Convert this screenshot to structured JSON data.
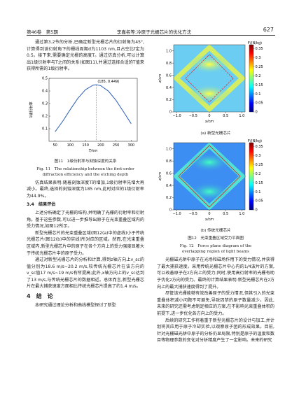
{
  "header": {
    "volume": "第46卷　第5期",
    "running_title": "李嘉名等:冷原子光栅芯片的优化方法",
    "page": "627"
  },
  "left": {
    "p1": "通过第3.2节的分析,已确定新型光栅芯片的衍射角为45°,计算得到该衍射角下的栅线周期d为1103 nm,且占空比f定为0.5。接下来,需要确定光栅的高度T。通过仿真分析,可以计算出1级衍射率与T之间的关系(如图11),并通过选择合适的T值来获得所需的1级衍射率。",
    "fig11_caption_cn": "图11　1级衍射率与刻蚀深度的关系",
    "fig11_caption_en": "Fig. 11　The relationship between the first-order diffraction efficiency and the etching depth",
    "p2": "仿真结果表明:随着刻蚀深度T的增加,1级衍射率先增大再减小。最终,选择的刻蚀深度为185 nm,此时对应的1级衍射率为44.9%。",
    "section34": "3.4　结果评估",
    "p3": "上述分析确定了光栅的结构,并明确了光栅的衍射率和衍射角。基于这些参数,可以进一步推导出原子在光束重叠区域内的受力情况,如图12所示。",
    "p4": "新型光栅芯片的光束重叠区域(图12(a)中的虚线)小于传统光栅芯片(图12(b)中的实线)所对应的区域。然而,在光束重叠区域内,新型光栅芯片中的原子在各个方向上的受力强度显著大于传统光栅芯片中的原子受力。",
    "p5": "通过对新型光栅芯片的分析和计算,得到z轴方向上v_sc的值分别为18.6 m/s~20.2 m/s,较传统光栅芯片在该方向的v_sc值17 m/s~19 m/s有所提高;此外,x轴方向上的v_sc达到了13 m/s,与传统光栅芯片的数据相近。总体而言,新型光栅芯片在最大捕获速度方面相比传统光栅芯片提高了约1.4 m/s。",
    "section4": "4　结　论",
    "p6": "本研究通过理论分析和曲线模型探讨了新型"
  },
  "chart_data": {
    "type": "line",
    "x_label": "T/nm",
    "y_label": "1级衍射率",
    "x": [
      50,
      75,
      100,
      125,
      150,
      175,
      185,
      200,
      225,
      250,
      275,
      300
    ],
    "values": [
      0.076,
      0.159,
      0.253,
      0.342,
      0.41,
      0.446,
      0.449,
      0.442,
      0.399,
      0.326,
      0.234,
      0.14
    ],
    "color": "#2b5fb8",
    "xlim": [
      30,
      320
    ],
    "ylim": [
      0,
      0.5
    ],
    "xticks": [
      50,
      100,
      150,
      200,
      250,
      300
    ],
    "yticks": [
      0.1,
      0.2,
      0.3,
      0.4,
      0.5
    ],
    "annotation": {
      "text": "(185, 0.449)",
      "x": 185,
      "y": 0.449
    }
  },
  "figure12": {
    "colorbar_label": "F/(N/kg)",
    "x_label": "x/cm",
    "y_label": "z/cm",
    "colorbar_ticks": [
      0,
      0.05,
      0.1,
      0.15,
      0.2,
      0.25,
      0.3,
      0.35
    ],
    "colorbar_lim": [
      0,
      0.37
    ],
    "xticks": [
      {
        "value": -1,
        "label": "−1.0"
      },
      {
        "value": -0.5,
        "label": "−0.5"
      },
      0,
      0.5,
      {
        "value": 1,
        "label": "1.0"
      }
    ],
    "xlim": [
      -1.1,
      1.1
    ],
    "yticks": [
      0,
      0.2,
      0.4,
      0.6,
      0.8,
      {
        "value": 1,
        "label": "1.0"
      }
    ],
    "ylim": [
      0,
      1.1
    ],
    "panel_a": "(a) 新型光栅芯片",
    "panel_b": "(b) 传统光栅芯片",
    "caption_cn": "图12　光束重叠区域受力平面图",
    "caption_en": "Fig. 12　Force plane diagram of the overlapping region of light beams"
  },
  "right": {
    "p1": "光栅磁光阱中原子在光场和磁场作用下的受力情况,并获得了最大捕获速度。采用传统光栅芯片中心内的1/4波片的方案,可以改善原子在z方向上的受力;同时,使用高衍射率的光栅有助于优化z方向的受力。最终的计算结果表明:新型光栅芯片在z方向上的最大捕获速度得到了提升。",
    "p2": "尽管该光栅能够有效改善原子的受力情况,但其引入的光束重叠体积减小问题不可避免,导致囚禁的原子数量减少。因此,未来的研究还需考虑制定相应的方案,在不影响光束重叠体积的前提下,进一步优化各方向上的受力。",
    "p3": "后续的研究工作将着重于新型光栅芯片的设计与加工,并计划将其应用于原子冷却实验,以观察原子团的形成效果。目前,针对光栅磁光阱中原子的分析仍显局限,特别是原子的温度和数目等物理参数的变化对分析精度产生了一定影响。未来的研究"
  }
}
